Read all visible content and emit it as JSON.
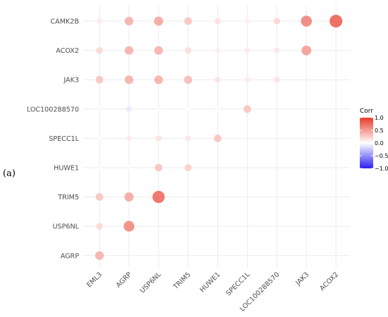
{
  "panel_label": "(a)",
  "chart_data": {
    "type": "correlogram",
    "x_labels": [
      "EML3",
      "AGRP",
      "USP6NL",
      "TRIM5",
      "HUWE1",
      "SPECC1L",
      "LOC100288570",
      "JAK3",
      "ACOX2"
    ],
    "y_labels": [
      "CAMK2B",
      "ACOX2",
      "JAK3",
      "LOC100288570",
      "SPECC1L",
      "HUWE1",
      "TRIM5",
      "USP6NL",
      "AGRP"
    ],
    "values": [
      [
        0.1,
        0.4,
        0.45,
        0.3,
        0.15,
        0.08,
        0.2,
        0.62,
        0.8
      ],
      [
        0.2,
        0.4,
        0.4,
        0.18,
        0.08,
        0.1,
        0.12,
        0.5,
        null
      ],
      [
        0.3,
        0.4,
        0.4,
        0.35,
        0.15,
        0.1,
        0.15,
        null,
        null
      ],
      [
        -0.02,
        -0.1,
        -0.01,
        0.01,
        0.02,
        0.3,
        null,
        null,
        null
      ],
      [
        0.01,
        0.1,
        0.15,
        0.12,
        0.3,
        null,
        null,
        null,
        null
      ],
      [
        0.02,
        0.02,
        0.3,
        0.25,
        null,
        null,
        null,
        null,
        null
      ],
      [
        0.3,
        0.45,
        0.75,
        null,
        null,
        null,
        null,
        null,
        null
      ],
      [
        0.2,
        0.6,
        null,
        null,
        null,
        null,
        null,
        null,
        null
      ],
      [
        0.4,
        null,
        null,
        null,
        null,
        null,
        null,
        null,
        null
      ]
    ],
    "legend": {
      "title": "Corr",
      "ticks": [
        "1.0",
        "0.5",
        "0.0",
        "−0.5",
        "−1.0"
      ],
      "tick_values": [
        1.0,
        0.5,
        0.0,
        -0.5,
        -1.0
      ],
      "range": [
        -1,
        1
      ],
      "colors": {
        "low": "#2b1ff0",
        "mid": "#ffffff",
        "high": "#e8392a"
      },
      "placement": "right"
    },
    "grid": true
  }
}
